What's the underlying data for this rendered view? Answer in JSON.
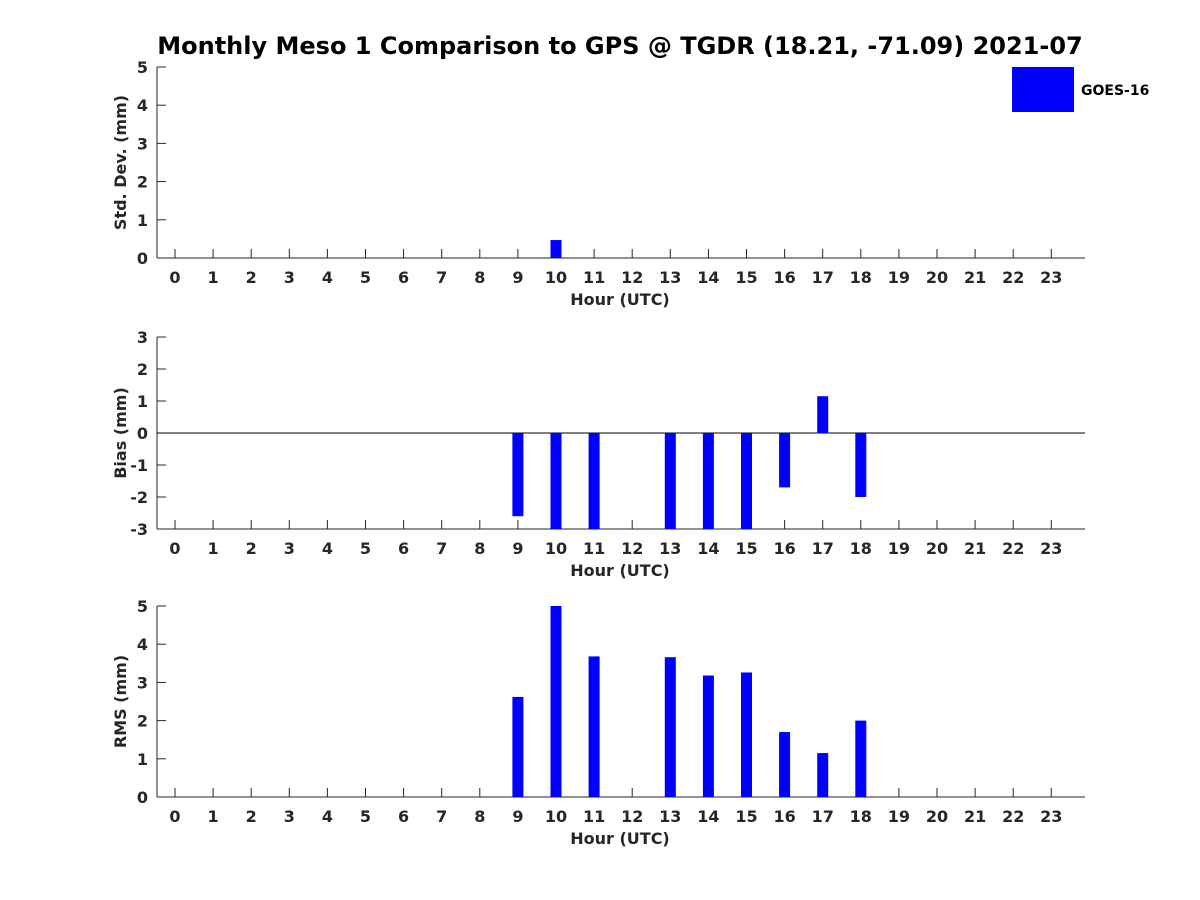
{
  "title": "Monthly Meso 1 Comparison to GPS @ TGDR (18.21, -71.09) 2021-07",
  "legend": {
    "label": "GOES-16",
    "color": "#0000ff"
  },
  "chart_data": [
    {
      "type": "bar",
      "ylabel": "Std. Dev. (mm)",
      "xlabel": "Hour (UTC)",
      "ylim": [
        0,
        5
      ],
      "yticks": [
        0,
        1,
        2,
        3,
        4,
        5
      ],
      "categories": [
        "0",
        "1",
        "2",
        "3",
        "4",
        "5",
        "6",
        "7",
        "8",
        "9",
        "10",
        "11",
        "12",
        "13",
        "14",
        "15",
        "16",
        "17",
        "18",
        "19",
        "20",
        "21",
        "22",
        "23"
      ],
      "series": [
        {
          "name": "GOES-16",
          "color": "#0000ff",
          "values": [
            null,
            null,
            null,
            null,
            null,
            null,
            null,
            null,
            null,
            0,
            0.47,
            0,
            null,
            0,
            0,
            0,
            0,
            0,
            0,
            null,
            null,
            null,
            null,
            null
          ]
        }
      ],
      "zero_line": false
    },
    {
      "type": "bar",
      "ylabel": "Bias (mm)",
      "xlabel": "Hour (UTC)",
      "ylim": [
        -3,
        3
      ],
      "yticks": [
        -3,
        -2,
        -1,
        0,
        1,
        2,
        3
      ],
      "categories": [
        "0",
        "1",
        "2",
        "3",
        "4",
        "5",
        "6",
        "7",
        "8",
        "9",
        "10",
        "11",
        "12",
        "13",
        "14",
        "15",
        "16",
        "17",
        "18",
        "19",
        "20",
        "21",
        "22",
        "23"
      ],
      "series": [
        {
          "name": "GOES-16",
          "color": "#0000ff",
          "values": [
            null,
            null,
            null,
            null,
            null,
            null,
            null,
            null,
            null,
            -2.6,
            -3.0,
            -3.0,
            null,
            -3.0,
            -3.0,
            -3.0,
            -1.7,
            1.15,
            -2.0,
            null,
            null,
            null,
            null,
            null
          ]
        }
      ],
      "zero_line": true
    },
    {
      "type": "bar",
      "ylabel": "RMS (mm)",
      "xlabel": "Hour (UTC)",
      "ylim": [
        0,
        5
      ],
      "yticks": [
        0,
        1,
        2,
        3,
        4,
        5
      ],
      "categories": [
        "0",
        "1",
        "2",
        "3",
        "4",
        "5",
        "6",
        "7",
        "8",
        "9",
        "10",
        "11",
        "12",
        "13",
        "14",
        "15",
        "16",
        "17",
        "18",
        "19",
        "20",
        "21",
        "22",
        "23"
      ],
      "series": [
        {
          "name": "GOES-16",
          "color": "#0000ff",
          "values": [
            null,
            null,
            null,
            null,
            null,
            null,
            null,
            null,
            null,
            2.62,
            5.0,
            3.68,
            null,
            3.66,
            3.18,
            3.26,
            1.7,
            1.15,
            2.0,
            null,
            null,
            null,
            null,
            null
          ]
        }
      ],
      "zero_line": false
    }
  ]
}
